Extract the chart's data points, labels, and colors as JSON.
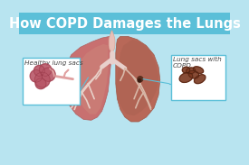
{
  "title": "How COPD Damages the Lungs",
  "title_color": "#ffffff",
  "title_bg_color": "#5bbfd8",
  "bg_color": "#b8e4f0",
  "label_healthy": "Healthy lung sacs",
  "label_copd": "Lung sacs with\nCOPD",
  "lung_left_color": "#c87070",
  "lung_right_color": "#b86858",
  "lung_lower_color": "#c8856a",
  "trachea_color": "#e8c0b8",
  "airway_color": "#e8d0cc",
  "box_edge_color": "#5bbfd8",
  "annotation_line_color": "#5bbfd8",
  "text_color": "#444444",
  "title_fontsize": 10.5,
  "label_fontsize": 5.2,
  "healthy_alv_color": "#b85868",
  "copd_alv_color": "#7a3820"
}
